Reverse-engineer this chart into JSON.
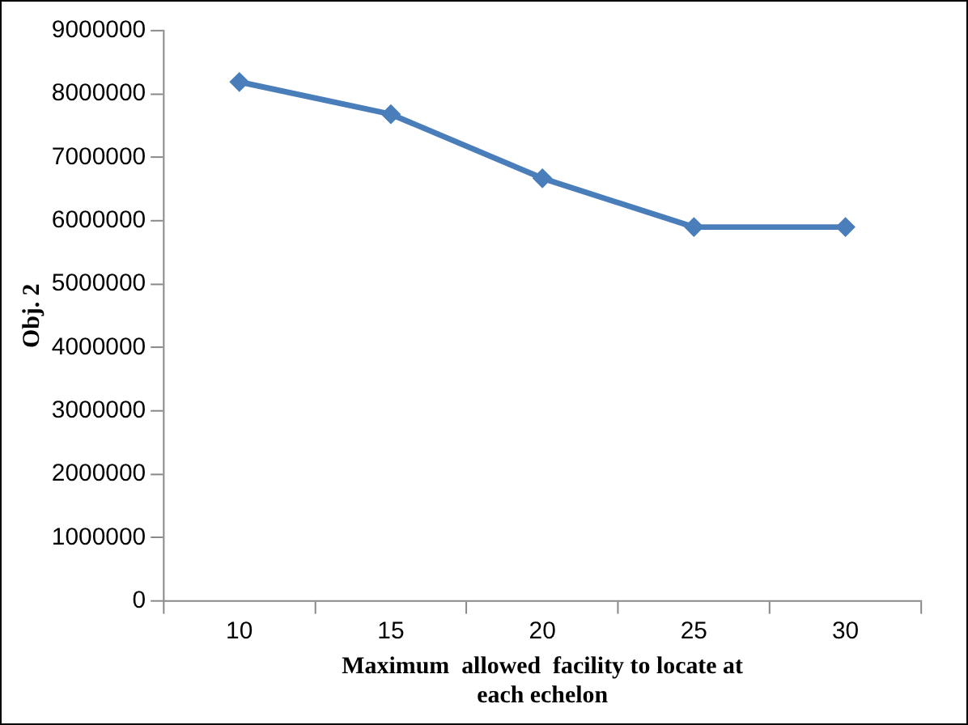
{
  "chart_data": {
    "type": "line",
    "xlabel": [
      "Maximum  allowed  facility to locate at",
      "each echelon"
    ],
    "ylabel": "Obj. 2",
    "categories": [
      "10",
      "15",
      "20",
      "25",
      "30"
    ],
    "series": [
      {
        "color": "#4a7ebb",
        "values": [
          8190000,
          7680000,
          6670000,
          5900000,
          5900000
        ]
      }
    ],
    "ylim": [
      0,
      9000000
    ],
    "yticks": [
      0,
      1000000,
      2000000,
      3000000,
      4000000,
      5000000,
      6000000,
      7000000,
      8000000,
      9000000
    ],
    "grid": false,
    "legend": false,
    "marker": "diamond",
    "line_style": "solid"
  }
}
